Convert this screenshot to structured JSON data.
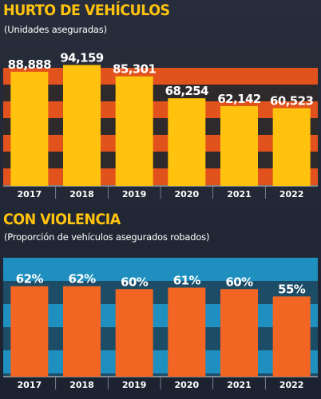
{
  "colors": {
    "background": "#222836",
    "title_yellow": "#ffc20e",
    "bar_yellow": "#ffc20e",
    "stripe_orange": "#e2521d",
    "stripe_dark": "#2e2a2c",
    "bar_orange": "#f26522",
    "stripe_blue": "#1f8fbf",
    "stripe_blue_dark": "#1c4c66",
    "label_white": "#ffffff"
  },
  "chart_data": [
    {
      "type": "bar",
      "title": "HURTO DE VEHÍCULOS",
      "subtitle": "(Unidades aseguradas)",
      "categories": [
        "2017",
        "2018",
        "2019",
        "2020",
        "2021",
        "2022"
      ],
      "values": [
        88888,
        94159,
        85301,
        68254,
        62142,
        60523
      ],
      "value_labels": [
        "88,888",
        "94,159",
        "85,301",
        "68,254",
        "62,142",
        "60,523"
      ],
      "ylim": [
        0,
        100000
      ],
      "grid": false
    },
    {
      "type": "bar",
      "title": "CON VIOLENCIA",
      "subtitle": "(Proporción de vehículos asegurados robados)",
      "categories": [
        "2017",
        "2018",
        "2019",
        "2020",
        "2021",
        "2022"
      ],
      "values": [
        62,
        62,
        60,
        61,
        60,
        55
      ],
      "value_labels": [
        "62%",
        "62%",
        "60%",
        "61%",
        "60%",
        "55%"
      ],
      "ylim": [
        0,
        70
      ],
      "grid": false
    }
  ]
}
